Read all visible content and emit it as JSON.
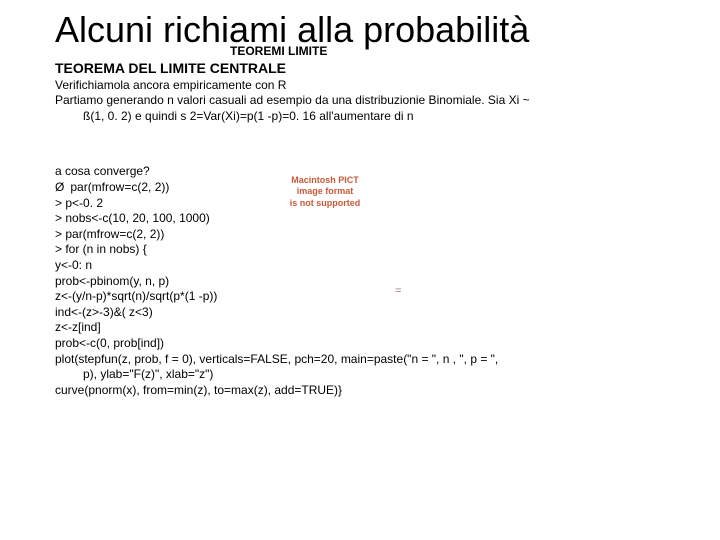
{
  "title": "Alcuni richiami alla probabilità",
  "subtitle": "TEOREMI LIMITE",
  "section": "TEOREMA DEL LIMITE CENTRALE",
  "para1": "Verifichiamola ancora empiricamente con R",
  "para2a": "Partiamo generando n valori casuali ad esempio da una distribuzionie Binomiale. Sia Xi ~",
  "para2b": "ß(1, 0. 2) e quindi s 2=Var(Xi)=p(1 -p)=0. 16 all'aumentare di n",
  "pict_l1": "Macintosh PICT",
  "pict_l2": "image format",
  "pict_l3": "is not supported",
  "q": "a cosa converge?",
  "bullet_glyph": "Ø",
  "code": [
    "par(mfrow=c(2, 2))",
    "> p<-0. 2",
    "> nobs<-c(10, 20, 100, 1000)",
    "> par(mfrow=c(2, 2))",
    "> for (n in nobs) {",
    "  y<-0: n",
    "  prob<-pbinom(y, n, p)",
    "  z<-(y/n-p)*sqrt(n)/sqrt(p*(1 -p))",
    "  ind<-(z>-3)&( z<3)",
    "  z<-z[ind]",
    "  prob<-c(0, prob[ind])",
    "  plot(stepfun(z, prob, f = 0), verticals=FALSE, pch=20, main=paste(\"n = \", n , \", p = \",",
    "        p), ylab=\"F(z)\", xlab=\"z\")",
    "  curve(pnorm(x), from=min(z), to=max(z), add=TRUE)}"
  ],
  "equal": "="
}
